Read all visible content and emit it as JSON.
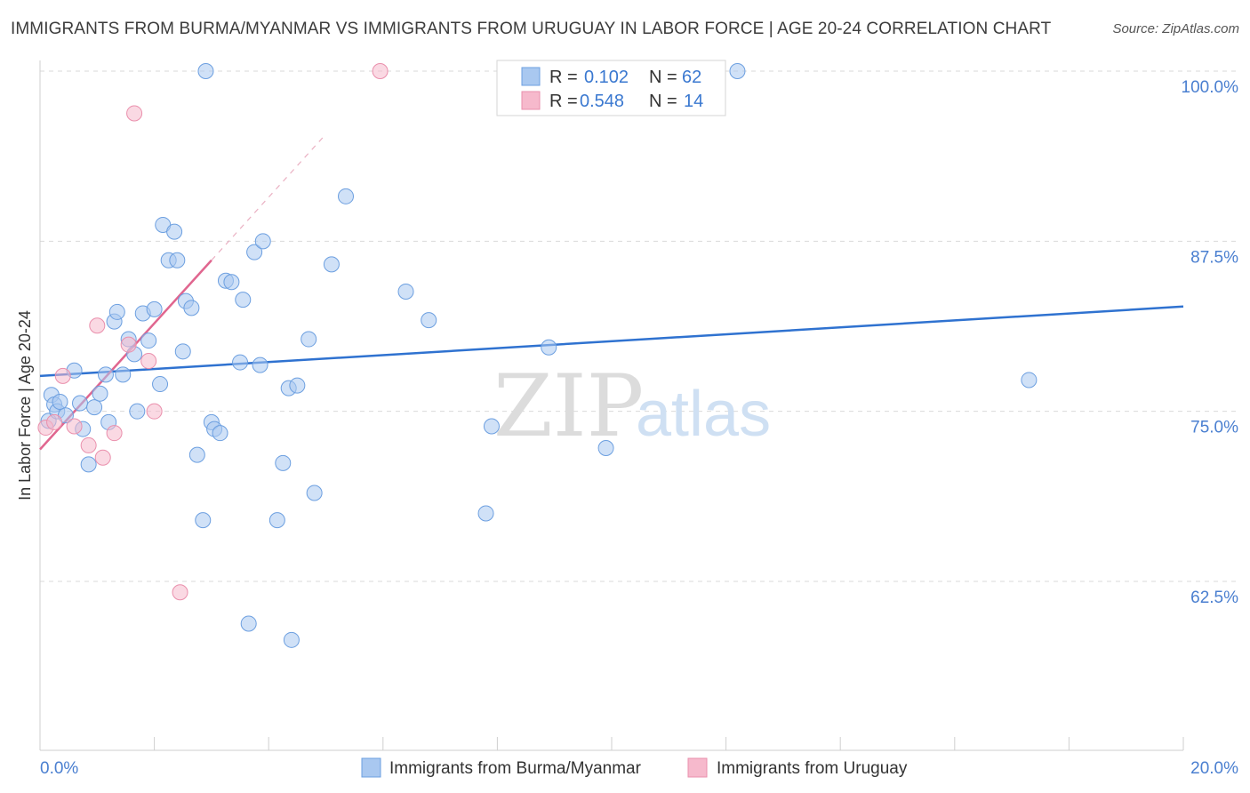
{
  "title": "IMMIGRANTS FROM BURMA/MYANMAR VS IMMIGRANTS FROM URUGUAY IN LABOR FORCE | AGE 20-24 CORRELATION CHART",
  "source": "Source: ZipAtlas.com",
  "watermark": {
    "zip": "ZIP",
    "atlas": "atlas"
  },
  "colors": {
    "series1_fill": "#a9c8f0",
    "series1_stroke": "#6c9fe0",
    "series1_line": "#2f72d0",
    "series2_fill": "#f6b9cc",
    "series2_stroke": "#ea8fac",
    "series2_line": "#e0668f",
    "tick_label": "#4a7fd0",
    "grid": "#d9d9d9"
  },
  "legend": {
    "rows": [
      {
        "r_label": "R =",
        "r_value": "0.102",
        "n_label": "N =",
        "n_value": "62"
      },
      {
        "r_label": "R =",
        "r_value": "0.548",
        "n_label": "N =",
        "n_value": "14"
      }
    ]
  },
  "chart_data": {
    "type": "scatter",
    "title": "IMMIGRANTS FROM BURMA/MYANMAR VS IMMIGRANTS FROM URUGUAY IN LABOR FORCE | AGE 20-24 CORRELATION CHART",
    "xlabel": "",
    "ylabel": "In Labor Force | Age 20-24",
    "xlim": [
      0,
      20
    ],
    "ylim": [
      50,
      101
    ],
    "x_tick_labels": [
      "0.0%",
      "20.0%"
    ],
    "y_ticks": [
      62.5,
      75.0,
      87.5,
      100.0
    ],
    "y_tick_labels": [
      "62.5%",
      "75.0%",
      "87.5%",
      "100.0%"
    ],
    "grid": "horizontal dashed",
    "legend_position": "bottom",
    "series": [
      {
        "name": "Immigrants from Burma/Myanmar",
        "r": 0.102,
        "n": 62,
        "trend": {
          "x": [
            0,
            20
          ],
          "y": [
            77.6,
            82.7
          ]
        },
        "points": [
          [
            0.15,
            74.3
          ],
          [
            0.2,
            76.2
          ],
          [
            0.25,
            75.5
          ],
          [
            0.3,
            75.0
          ],
          [
            0.35,
            75.7
          ],
          [
            0.45,
            74.7
          ],
          [
            0.6,
            78.0
          ],
          [
            0.7,
            75.6
          ],
          [
            0.75,
            73.7
          ],
          [
            0.85,
            71.1
          ],
          [
            0.95,
            75.3
          ],
          [
            1.05,
            76.3
          ],
          [
            1.15,
            77.7
          ],
          [
            1.2,
            74.2
          ],
          [
            1.3,
            81.6
          ],
          [
            1.35,
            82.3
          ],
          [
            1.45,
            77.7
          ],
          [
            1.55,
            80.3
          ],
          [
            1.65,
            79.2
          ],
          [
            1.7,
            75.0
          ],
          [
            1.8,
            82.2
          ],
          [
            1.9,
            80.2
          ],
          [
            2.0,
            82.5
          ],
          [
            2.1,
            77.0
          ],
          [
            2.15,
            88.7
          ],
          [
            2.25,
            86.1
          ],
          [
            2.35,
            88.2
          ],
          [
            2.4,
            86.1
          ],
          [
            2.5,
            79.4
          ],
          [
            2.55,
            83.1
          ],
          [
            2.65,
            82.6
          ],
          [
            2.75,
            71.8
          ],
          [
            2.85,
            67.0
          ],
          [
            3.0,
            74.2
          ],
          [
            3.05,
            73.7
          ],
          [
            3.15,
            73.4
          ],
          [
            3.25,
            84.6
          ],
          [
            3.35,
            84.5
          ],
          [
            3.5,
            78.6
          ],
          [
            3.55,
            83.2
          ],
          [
            3.65,
            59.4
          ],
          [
            3.75,
            86.7
          ],
          [
            3.85,
            78.4
          ],
          [
            3.9,
            87.5
          ],
          [
            4.15,
            67.0
          ],
          [
            4.25,
            71.2
          ],
          [
            4.35,
            76.7
          ],
          [
            4.4,
            58.2
          ],
          [
            4.5,
            76.9
          ],
          [
            4.7,
            80.3
          ],
          [
            4.8,
            69.0
          ],
          [
            5.1,
            85.8
          ],
          [
            5.35,
            90.8
          ],
          [
            2.9,
            100.0
          ],
          [
            6.4,
            83.8
          ],
          [
            6.8,
            81.7
          ],
          [
            7.8,
            67.5
          ],
          [
            7.9,
            73.9
          ],
          [
            8.9,
            79.7
          ],
          [
            9.9,
            72.3
          ],
          [
            12.2,
            100.0
          ],
          [
            17.3,
            77.3
          ]
        ]
      },
      {
        "name": "Immigrants from Uruguay",
        "r": 0.548,
        "n": 14,
        "trend": {
          "x": [
            0,
            6.0
          ],
          "y": [
            72.2,
            100.0
          ],
          "solid_until_x": 6.0,
          "dashed_from_x": 6.0
        },
        "points": [
          [
            0.1,
            73.8
          ],
          [
            0.25,
            74.2
          ],
          [
            0.4,
            77.6
          ],
          [
            0.6,
            73.9
          ],
          [
            0.85,
            72.5
          ],
          [
            1.1,
            71.6
          ],
          [
            1.3,
            73.4
          ],
          [
            1.0,
            81.3
          ],
          [
            1.55,
            79.9
          ],
          [
            1.65,
            96.9
          ],
          [
            1.9,
            78.7
          ],
          [
            2.0,
            75.0
          ],
          [
            2.45,
            61.7
          ],
          [
            5.95,
            100.0
          ]
        ]
      }
    ]
  },
  "bottom_legend": [
    {
      "label": "Immigrants from Burma/Myanmar"
    },
    {
      "label": "Immigrants from Uruguay"
    }
  ]
}
